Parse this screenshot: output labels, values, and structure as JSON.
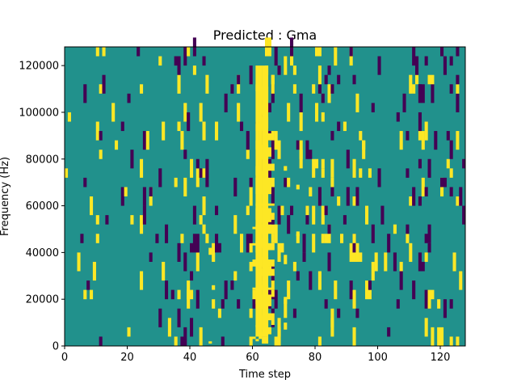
{
  "chart_data": {
    "type": "heatmap",
    "title": "Predicted : Gma",
    "xlabel": "Time step",
    "ylabel": "Frequency (Hz)",
    "xlim": [
      0,
      128
    ],
    "ylim": [
      0,
      128000
    ],
    "x_ticks": [
      0,
      20,
      40,
      60,
      80,
      100,
      120
    ],
    "x_tick_labels": [
      "0",
      "20",
      "40",
      "60",
      "80",
      "100",
      "120"
    ],
    "y_ticks": [
      0,
      20000,
      40000,
      60000,
      80000,
      100000,
      120000
    ],
    "y_tick_labels": [
      "0",
      "20000",
      "40000",
      "60000",
      "80000",
      "100000",
      "120000"
    ],
    "colormap": {
      "low": "#440154",
      "mid": "#21918c",
      "high": "#fde725"
    },
    "background_value": "mid",
    "high_value_cells": [
      [
        46,
        1,
        1
      ],
      [
        46,
        39,
        3
      ],
      [
        47,
        24,
        2
      ],
      [
        60,
        3,
        1
      ],
      [
        60,
        24,
        1
      ],
      [
        60,
        34,
        3
      ],
      [
        60,
        43,
        1
      ],
      [
        60,
        50,
        1
      ],
      [
        61,
        2,
        1
      ],
      [
        61,
        8,
        1
      ],
      [
        61,
        18,
        4
      ],
      [
        61,
        24,
        1
      ],
      [
        61,
        34,
        3
      ],
      [
        61,
        43,
        2
      ],
      [
        61,
        54,
        5
      ],
      [
        61,
        60,
        1
      ],
      [
        61,
        65,
        7
      ],
      [
        61,
        73,
        4
      ],
      [
        61,
        84,
        4
      ],
      [
        61,
        92,
        3
      ],
      [
        61,
        109,
        3
      ],
      [
        62,
        3,
        3
      ],
      [
        62,
        18,
        4
      ],
      [
        62,
        24,
        2
      ],
      [
        62,
        30,
        3
      ],
      [
        62,
        34,
        3
      ],
      [
        62,
        42,
        3
      ],
      [
        62,
        48,
        3
      ],
      [
        62,
        54,
        5
      ],
      [
        62,
        60,
        1
      ],
      [
        62,
        66,
        7
      ],
      [
        62,
        82,
        4
      ],
      [
        62,
        92,
        3
      ],
      [
        62,
        99,
        4
      ],
      [
        62,
        106,
        3
      ],
      [
        63,
        1,
        3
      ],
      [
        63,
        7,
        6
      ],
      [
        63,
        16,
        5
      ],
      [
        63,
        24,
        2
      ],
      [
        63,
        30,
        3
      ],
      [
        63,
        34,
        4
      ],
      [
        63,
        42,
        4
      ],
      [
        63,
        48,
        4
      ],
      [
        63,
        53,
        6
      ],
      [
        63,
        60,
        1
      ],
      [
        63,
        65,
        10
      ],
      [
        63,
        80,
        6
      ],
      [
        63,
        93,
        5
      ],
      [
        63,
        105,
        6
      ],
      [
        64,
        1,
        3
      ],
      [
        64,
        7,
        6
      ],
      [
        64,
        16,
        6
      ],
      [
        64,
        24,
        2
      ],
      [
        64,
        30,
        4
      ],
      [
        64,
        34,
        4
      ],
      [
        64,
        41,
        5
      ],
      [
        64,
        48,
        4
      ],
      [
        64,
        53,
        6
      ],
      [
        64,
        60,
        1
      ],
      [
        64,
        65,
        10
      ],
      [
        64,
        80,
        6
      ],
      [
        64,
        93,
        5
      ],
      [
        64,
        105,
        6
      ],
      [
        65,
        5,
        3
      ],
      [
        65,
        11,
        3
      ],
      [
        65,
        17,
        5
      ],
      [
        65,
        24,
        1
      ],
      [
        65,
        30,
        4
      ],
      [
        65,
        34,
        3
      ],
      [
        65,
        41,
        3
      ],
      [
        65,
        48,
        4
      ],
      [
        65,
        53,
        6
      ],
      [
        65,
        60,
        1
      ],
      [
        65,
        65,
        7
      ],
      [
        65,
        75,
        3
      ],
      [
        65,
        81,
        4
      ],
      [
        65,
        88,
        3
      ],
      [
        66,
        9,
        5
      ],
      [
        66,
        21,
        3
      ],
      [
        66,
        30,
        3
      ],
      [
        66,
        34,
        3
      ],
      [
        66,
        41,
        3
      ],
      [
        66,
        48,
        3
      ],
      [
        66,
        54,
        3
      ],
      [
        66,
        60,
        1
      ],
      [
        66,
        75,
        3
      ],
      [
        70,
        7,
        3
      ],
      [
        70,
        18,
        3
      ],
      [
        70,
        35,
        4
      ],
      [
        70,
        75,
        2
      ],
      [
        74,
        47,
        2
      ],
      [
        74,
        67,
        2
      ]
    ],
    "high_value_cells_format": "[time_step, frequency_bin_start, run_length] where frequency bin index = Hz / 1000",
    "note_values": "cells set to 'high' (yellow) or 'low' (purple) are rendered procedurally from a sparse pattern; the dominant band near time step 60-66 is high"
  }
}
